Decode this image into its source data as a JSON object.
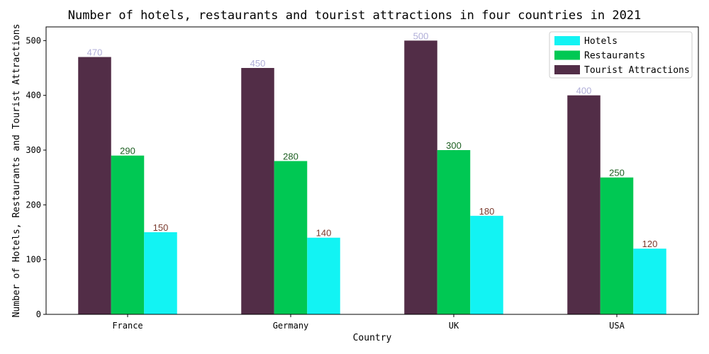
{
  "chart_data": {
    "type": "bar",
    "title": "Number of hotels, restaurants and tourist attractions in four countries in 2021",
    "xlabel": "Country",
    "ylabel": "Number of Hotels, Restaurants and Tourist Attractions",
    "categories": [
      "France",
      "Germany",
      "UK",
      "USA"
    ],
    "ylim": [
      0,
      525
    ],
    "yticks": [
      0,
      100,
      200,
      300,
      400,
      500
    ],
    "grid": false,
    "legend_position": "top-right",
    "series": [
      {
        "name": "Hotels",
        "values": [
          150,
          140,
          180,
          120
        ],
        "color": "#12f3f3",
        "label_color": "#7a3b2e"
      },
      {
        "name": "Restaurants",
        "values": [
          290,
          280,
          300,
          250
        ],
        "color": "#00c853",
        "label_color": "#1b5e20"
      },
      {
        "name": "Tourist Attractions",
        "values": [
          470,
          450,
          500,
          400
        ],
        "color": "#522d47",
        "label_color": "#b0aed8"
      }
    ],
    "draw_order": [
      "Tourist Attractions",
      "Restaurants",
      "Hotels"
    ]
  }
}
